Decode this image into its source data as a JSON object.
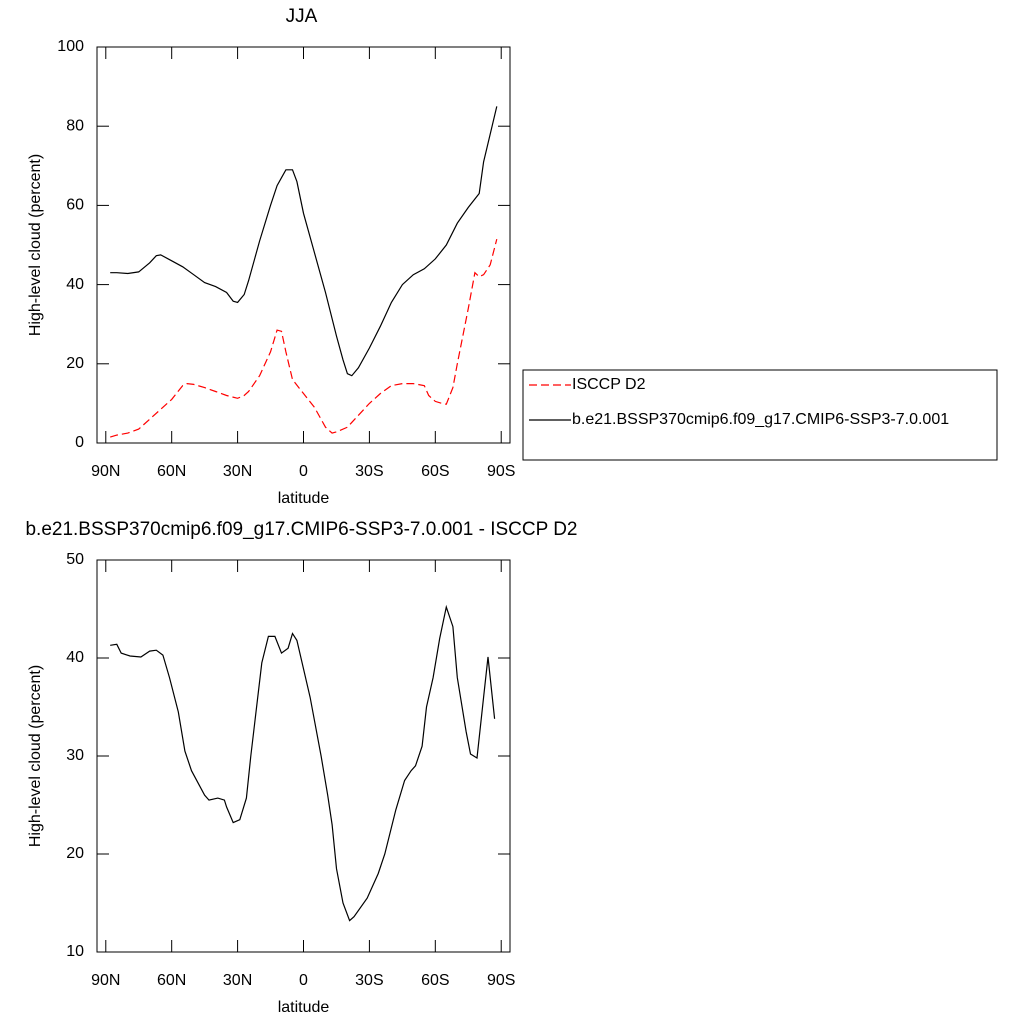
{
  "chart_data": [
    {
      "type": "line",
      "title": "JJA",
      "xlabel": "latitude",
      "ylabel": "High-level cloud (percent)",
      "xlim": [
        94,
        -94
      ],
      "ylim": [
        0,
        100
      ],
      "xticks": [
        {
          "value": 90,
          "label": "90N"
        },
        {
          "value": 60,
          "label": "60N"
        },
        {
          "value": 30,
          "label": "30N"
        },
        0,
        {
          "value": -30,
          "label": "30S"
        },
        {
          "value": -60,
          "label": "60S"
        },
        {
          "value": -90,
          "label": "90S"
        }
      ],
      "yticks": [
        0,
        20,
        40,
        60,
        80,
        100
      ],
      "series": [
        {
          "name": "ISCCP D2",
          "color": "#ff0000",
          "dash": true,
          "x": [
            88,
            85,
            80,
            75,
            70,
            65,
            60,
            55,
            53,
            50,
            45,
            40,
            35,
            30,
            27,
            25,
            20,
            15,
            12,
            10,
            8,
            5,
            0,
            -5,
            -10,
            -13,
            -15,
            -20,
            -25,
            -30,
            -35,
            -40,
            -45,
            -50,
            -55,
            -57,
            -60,
            -63,
            -65,
            -68,
            -70,
            -75,
            -78,
            -80,
            -82,
            -85,
            -88
          ],
          "values": [
            1.5,
            2,
            2.5,
            3.5,
            6,
            8.5,
            11,
            14.5,
            15,
            14.8,
            14,
            13,
            12,
            11.3,
            12,
            13,
            17,
            23,
            28.5,
            28.2,
            23,
            16,
            12.5,
            9,
            4,
            2.5,
            2.8,
            4,
            7,
            10,
            12.5,
            14.5,
            15,
            15,
            14.5,
            12,
            10.5,
            10,
            9.8,
            14,
            20,
            34,
            43,
            42,
            42.5,
            45,
            51.5
          ]
        },
        {
          "name": "b.e21.BSSP370cmip6.f09_g17.CMIP6-SSP3-7.0.001",
          "color": "#000000",
          "dash": false,
          "x": [
            88,
            85,
            80,
            75,
            70,
            67,
            65,
            60,
            55,
            50,
            45,
            40,
            35,
            32,
            30,
            27,
            25,
            20,
            15,
            12,
            10,
            8,
            5,
            3,
            0,
            -5,
            -10,
            -15,
            -18,
            -20,
            -22,
            -25,
            -30,
            -35,
            -40,
            -45,
            -50,
            -55,
            -60,
            -65,
            -70,
            -75,
            -80,
            -82,
            -85,
            -88
          ],
          "values": [
            43,
            43,
            42.8,
            43.2,
            45.5,
            47.3,
            47.5,
            46,
            44.5,
            42.5,
            40.5,
            39.5,
            38,
            35.8,
            35.5,
            37.5,
            41,
            51,
            60,
            65,
            67,
            69,
            69,
            66,
            58,
            48,
            38,
            27,
            21,
            17.5,
            17,
            19,
            24,
            29.5,
            35.5,
            40,
            42.5,
            44,
            46.5,
            50,
            55.5,
            59.5,
            63,
            71,
            78,
            85
          ]
        }
      ]
    },
    {
      "type": "line",
      "title": "b.e21.BSSP370cmip6.f09_g17.CMIP6-SSP3-7.0.001 - ISCCP D2",
      "xlabel": "latitude",
      "ylabel": "High-level cloud (percent)",
      "xlim": [
        94,
        -94
      ],
      "ylim": [
        10,
        50
      ],
      "xticks": [
        {
          "value": 90,
          "label": "90N"
        },
        {
          "value": 60,
          "label": "60N"
        },
        {
          "value": 30,
          "label": "30N"
        },
        0,
        {
          "value": -30,
          "label": "30S"
        },
        {
          "value": -60,
          "label": "60S"
        },
        {
          "value": -90,
          "label": "90S"
        }
      ],
      "yticks": [
        10,
        20,
        30,
        40,
        50
      ],
      "color": "#000000",
      "x": [
        88,
        85,
        83,
        79,
        74,
        70,
        67,
        64,
        61,
        57,
        54,
        51,
        45,
        43,
        39,
        36,
        35,
        32,
        29,
        26,
        24,
        19,
        16,
        13,
        10,
        7,
        5,
        3,
        -3,
        -8,
        -11,
        -13,
        -15,
        -18,
        -21,
        -23,
        -29,
        -34,
        -37,
        -42,
        -46,
        -49,
        -51,
        -54,
        -56,
        -59,
        -62,
        -65,
        -68,
        -70,
        -74,
        -76,
        -79,
        -82,
        -84,
        -87
      ],
      "values": [
        41.3,
        41.4,
        40.5,
        40.2,
        40.1,
        40.7,
        40.8,
        40.3,
        38,
        34.5,
        30.5,
        28.5,
        26,
        25.5,
        25.7,
        25.5,
        24.8,
        23.2,
        23.5,
        25.7,
        30,
        39.5,
        42.2,
        42.2,
        40.5,
        41,
        42.5,
        41.8,
        36,
        30,
        26,
        23,
        18.5,
        15,
        13.2,
        13.6,
        15.5,
        18,
        20,
        24.5,
        27.5,
        28.5,
        29,
        31,
        35,
        38,
        42,
        45.2,
        43.2,
        38,
        32.5,
        30.2,
        29.8,
        36,
        40.1,
        33.8
      ]
    }
  ]
}
